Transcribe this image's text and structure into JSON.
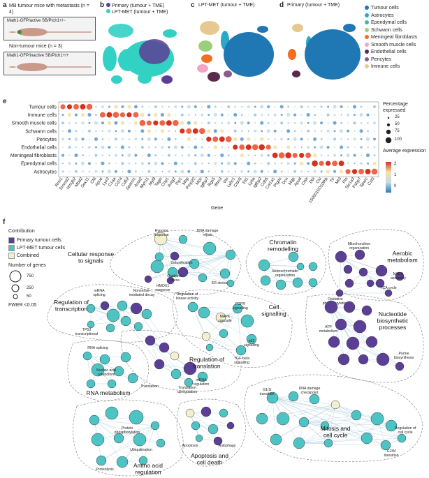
{
  "panels": {
    "a": {
      "letter": "a",
      "mb_title": "MB tumour mice with metastasis (n = 4)",
      "mb_genotype": "Math1-GFP/active SB/Ptch1+/−",
      "non_title": "Non-tumour mice (n = 3)",
      "non_genotype": "Math1-GFP/inactive SB/Ptch1+/+"
    },
    "b": {
      "letter": "b",
      "legend_primary": "Primary (tumour + TME)",
      "legend_lpt": "LPT-MET (tumour + TME)"
    },
    "c": {
      "letter": "c",
      "title": "LPT-MET (tumour + TME)"
    },
    "d": {
      "letter": "d",
      "title": "Primary (tumour + TME)"
    },
    "cell_legend": [
      {
        "label": "Tumour cells",
        "color": "#1f77b4"
      },
      {
        "label": "Astrocytes",
        "color": "#2aa8c8"
      },
      {
        "label": "Ependymal cells",
        "color": "#3fb7a8"
      },
      {
        "label": "Schwann cells",
        "color": "#9ccf7c"
      },
      {
        "label": "Meningeal fibroblasts",
        "color": "#f46d21"
      },
      {
        "label": "Smooth muscle cells",
        "color": "#f4a3c5"
      },
      {
        "label": "Endothelial cells",
        "color": "#5a2a4a"
      },
      {
        "label": "Pericytes",
        "color": "#8b5a8c"
      },
      {
        "label": "Immune cells",
        "color": "#e8c891"
      }
    ],
    "e": {
      "letter": "e",
      "xlabel": "Gene",
      "size_legend_title": "Percentage expressed",
      "size_values": [
        "25",
        "50",
        "75",
        "100"
      ],
      "color_legend_title": "Average expression",
      "color_ticks": [
        "2",
        "1",
        "0"
      ]
    },
    "f": {
      "letter": "f",
      "contribution_title": "Contribution",
      "contrib": [
        {
          "label": "Primary tumour cells",
          "color": "#5b3f96"
        },
        {
          "label": "LPT-MET tumour cells",
          "color": "#4ec3c4"
        },
        {
          "label": "Combined",
          "color": "#f3f0cf"
        }
      ],
      "genes_title": "Number of genes",
      "gene_sizes": [
        "750",
        "250",
        "50"
      ],
      "fwer": "FWER <0.05"
    }
  },
  "chart_data": {
    "type": "dot",
    "rows": [
      "Tumour cells",
      "Immune cells",
      "Smooth muscle cells",
      "Schwann cells",
      "Pericytes",
      "Endothelial cells",
      "Meningeal fibroblasts",
      "Ependymal cells",
      "Astrocytes"
    ],
    "genes": [
      "Rrm1",
      "Smmd2",
      "Hmgb2",
      "Mbd2",
      "Sox11",
      "Cfd",
      "Apoe",
      "Lyz2",
      "C1qa",
      "Cd74",
      "Cd52",
      "Sparcl1",
      "Acta2",
      "Myh11",
      "Myl9",
      "Tagln",
      "Crip1",
      "Actg2",
      "Plp1",
      "Mbp",
      "Pmp22",
      "Mpz",
      "Igfbp7",
      "Rgs5",
      "Ifitm3",
      "Vtn",
      "Ly6c1",
      "Cldn5",
      "Flt1",
      "Ly6a",
      "Igfbp2",
      "Cdh5",
      "Col1a1",
      "Ptgds",
      "Dcn",
      "Mgp",
      "Apod",
      "Ctsk",
      "Dbi",
      "Clu",
      "1500015O10Rik",
      "Ttr",
      "Mt3",
      "Ptn",
      "Slc1a3",
      "Fabp7",
      "Sparc",
      "Cst3"
    ],
    "size_legend": [
      25,
      50,
      75,
      100
    ],
    "color_scale": [
      0,
      1,
      2
    ],
    "blocks": [
      {
        "row": "Tumour cells",
        "gene_start": 0,
        "gene_end": 4
      },
      {
        "row": "Immune cells",
        "gene_start": 6,
        "gene_end": 11
      },
      {
        "row": "Smooth muscle cells",
        "gene_start": 12,
        "gene_end": 17
      },
      {
        "row": "Schwann cells",
        "gene_start": 18,
        "gene_end": 21
      },
      {
        "row": "Pericytes",
        "gene_start": 22,
        "gene_end": 25
      },
      {
        "row": "Endothelial cells",
        "gene_start": 26,
        "gene_end": 31
      },
      {
        "row": "Meningeal fibroblasts",
        "gene_start": 32,
        "gene_end": 37
      },
      {
        "row": "Ependymal cells",
        "gene_start": 38,
        "gene_end": 42
      },
      {
        "row": "Astrocytes",
        "gene_start": 43,
        "gene_end": 47
      }
    ]
  },
  "network": {
    "clusters": [
      {
        "name": "Cellular response to signals",
        "terms": [
          "Hypoxia response",
          "DNA damage repair",
          "Detoxification",
          "Oxidative stress",
          "HMOX1 response",
          "ER stress"
        ]
      },
      {
        "name": "Chromatin remodelling",
        "terms": [
          "Heterochromatin organization"
        ]
      },
      {
        "name": "Aerobic metabolism",
        "terms": [
          "Mitochondrion organization",
          "NADH assembly",
          "TCA cycle",
          "Oxidative phosphorylation"
        ]
      },
      {
        "name": "Regulation of transcription",
        "terms": [
          "mRNA splicing",
          "Nonsense-mediated decay",
          "TP53 transcriptional"
        ]
      },
      {
        "name": "Cell signalling",
        "terms": [
          "Regulation of kinase activity",
          "MAPK cascade",
          "FGFR signalling",
          "p53 signalling",
          "TGF-beta signalling"
        ]
      },
      {
        "name": "Nucleotide biosynthetic processes",
        "terms": [
          "ATP metabolism",
          "Purine biosynthesis"
        ]
      },
      {
        "name": "Regulation of translation",
        "terms": [
          "Translation",
          "mRNA regulation",
          "Translation upregulation"
        ]
      },
      {
        "name": "RNA metabolism",
        "terms": [
          "RNA splicing",
          "Nucleic acid catabolism"
        ]
      },
      {
        "name": "Mitosis and cell cycle",
        "terms": [
          "G1/S transition",
          "DNA damage checkpoint",
          "Regulation of cell cycle",
          "G2/M transition"
        ]
      },
      {
        "name": "Amino acid regulation",
        "terms": [
          "Protein phosphorylation",
          "Ubiquitination",
          "Proteolysis"
        ]
      },
      {
        "name": "Apoptosis and cell death",
        "terms": [
          "Apoptosis",
          "Autophagy"
        ]
      }
    ]
  }
}
